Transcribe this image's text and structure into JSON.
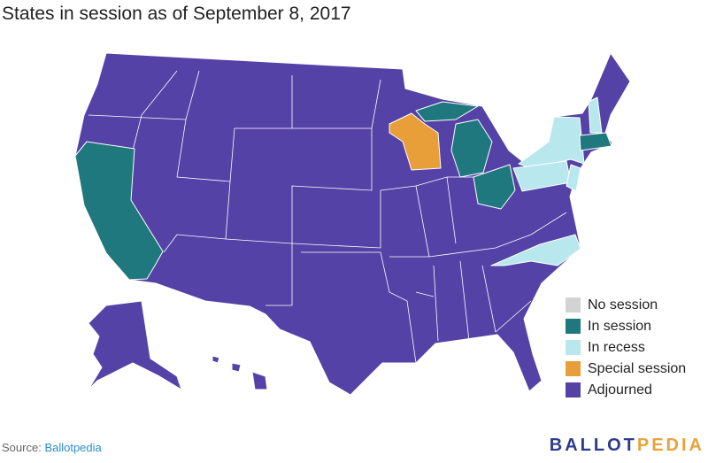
{
  "title": "States in session as of September 8, 2017",
  "legend": [
    {
      "label": "No session",
      "color": "#d3d3d3"
    },
    {
      "label": "In session",
      "color": "#1f787d"
    },
    {
      "label": "In recess",
      "color": "#b8e8ee"
    },
    {
      "label": "Special session",
      "color": "#e89f3a"
    },
    {
      "label": "Adjourned",
      "color": "#5542a6"
    }
  ],
  "source": {
    "prefix": "Source:",
    "link": "Ballotpedia"
  },
  "logo": {
    "first": "BALLOT",
    "second": "PEDIA"
  }
}
